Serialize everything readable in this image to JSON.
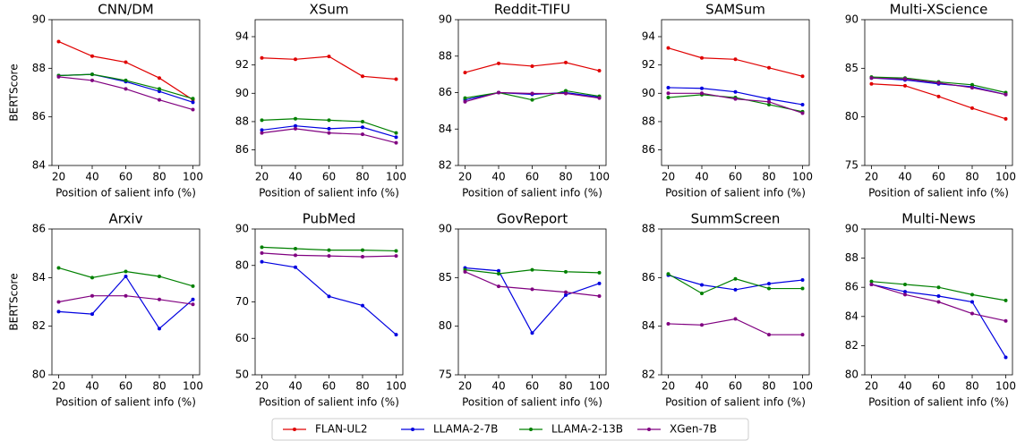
{
  "chart_data": [
    {
      "type": "line",
      "title": "CNN/DM",
      "xlabel": "Position of salient info (%)",
      "ylabel": "BERTScore",
      "x": [
        20,
        40,
        60,
        80,
        100
      ],
      "xlim": [
        16,
        104
      ],
      "xticks": [
        20,
        40,
        60,
        80,
        100
      ],
      "ylim": [
        84,
        90
      ],
      "yticks": [
        84,
        86,
        88,
        90
      ],
      "legend": "lower center",
      "series": [
        {
          "name": "FLAN-UL2",
          "color": "#e00000",
          "values": [
            89.1,
            88.5,
            88.25,
            87.6,
            86.7
          ]
        },
        {
          "name": "LLAMA-2-7B",
          "color": "#0000e0",
          "values": [
            87.7,
            87.75,
            87.45,
            87.05,
            86.6
          ]
        },
        {
          "name": "LLAMA-2-13B",
          "color": "#008000",
          "values": [
            87.7,
            87.75,
            87.5,
            87.15,
            86.75
          ]
        },
        {
          "name": "XGen-7B",
          "color": "#800080",
          "values": [
            87.65,
            87.5,
            87.15,
            86.7,
            86.3
          ]
        }
      ]
    },
    {
      "type": "line",
      "title": "XSum",
      "xlabel": "Position of salient info (%)",
      "x": [
        20,
        40,
        60,
        80,
        100
      ],
      "xlim": [
        16,
        104
      ],
      "xticks": [
        20,
        40,
        60,
        80,
        100
      ],
      "ylim": [
        84.9,
        95.2
      ],
      "yticks": [
        86,
        88,
        90,
        92,
        94
      ],
      "series": [
        {
          "name": "FLAN-UL2",
          "color": "#e00000",
          "values": [
            92.5,
            92.4,
            92.6,
            91.2,
            91.0
          ]
        },
        {
          "name": "LLAMA-2-7B",
          "color": "#0000e0",
          "values": [
            87.4,
            87.7,
            87.5,
            87.6,
            86.9
          ]
        },
        {
          "name": "LLAMA-2-13B",
          "color": "#008000",
          "values": [
            88.1,
            88.2,
            88.1,
            88.0,
            87.2
          ]
        },
        {
          "name": "XGen-7B",
          "color": "#800080",
          "values": [
            87.2,
            87.5,
            87.2,
            87.1,
            86.5
          ]
        }
      ]
    },
    {
      "type": "line",
      "title": "Reddit-TIFU",
      "xlabel": "Position of salient info (%)",
      "x": [
        20,
        40,
        60,
        80,
        100
      ],
      "xlim": [
        16,
        104
      ],
      "xticks": [
        20,
        40,
        60,
        80,
        100
      ],
      "ylim": [
        82,
        90
      ],
      "yticks": [
        82,
        84,
        86,
        88,
        90
      ],
      "series": [
        {
          "name": "FLAN-UL2",
          "color": "#e00000",
          "values": [
            87.1,
            87.6,
            87.45,
            87.65,
            87.2
          ]
        },
        {
          "name": "LLAMA-2-7B",
          "color": "#0000e0",
          "values": [
            85.6,
            86.0,
            85.9,
            86.0,
            85.75
          ]
        },
        {
          "name": "LLAMA-2-13B",
          "color": "#008000",
          "values": [
            85.7,
            86.0,
            85.6,
            86.1,
            85.8
          ]
        },
        {
          "name": "XGen-7B",
          "color": "#800080",
          "values": [
            85.5,
            86.0,
            85.95,
            85.95,
            85.7
          ]
        }
      ]
    },
    {
      "type": "line",
      "title": "SAMSum",
      "xlabel": "Position of salient info (%)",
      "x": [
        20,
        40,
        60,
        80,
        100
      ],
      "xlim": [
        16,
        104
      ],
      "xticks": [
        20,
        40,
        60,
        80,
        100
      ],
      "ylim": [
        84.9,
        95.2
      ],
      "yticks": [
        86,
        88,
        90,
        92,
        94
      ],
      "series": [
        {
          "name": "FLAN-UL2",
          "color": "#e00000",
          "values": [
            93.2,
            92.5,
            92.4,
            91.8,
            91.2
          ]
        },
        {
          "name": "LLAMA-2-7B",
          "color": "#0000e0",
          "values": [
            90.4,
            90.35,
            90.1,
            89.6,
            89.2
          ]
        },
        {
          "name": "LLAMA-2-13B",
          "color": "#008000",
          "values": [
            89.7,
            89.9,
            89.7,
            89.2,
            88.7
          ]
        },
        {
          "name": "XGen-7B",
          "color": "#800080",
          "values": [
            90.0,
            90.0,
            89.6,
            89.4,
            88.6
          ]
        }
      ]
    },
    {
      "type": "line",
      "title": "Multi-XScience",
      "xlabel": "Position of salient info (%)",
      "x": [
        20,
        40,
        60,
        80,
        100
      ],
      "xlim": [
        16,
        104
      ],
      "xticks": [
        20,
        40,
        60,
        80,
        100
      ],
      "ylim": [
        75,
        90
      ],
      "yticks": [
        75,
        80,
        85,
        90
      ],
      "series": [
        {
          "name": "FLAN-UL2",
          "color": "#e00000",
          "values": [
            83.4,
            83.2,
            82.1,
            80.9,
            79.8
          ]
        },
        {
          "name": "LLAMA-2-7B",
          "color": "#0000e0",
          "values": [
            84.0,
            83.8,
            83.4,
            83.1,
            82.3
          ]
        },
        {
          "name": "LLAMA-2-13B",
          "color": "#008000",
          "values": [
            84.1,
            84.0,
            83.6,
            83.3,
            82.5
          ]
        },
        {
          "name": "XGen-7B",
          "color": "#800080",
          "values": [
            84.0,
            83.9,
            83.5,
            83.0,
            82.3
          ]
        }
      ]
    },
    {
      "type": "line",
      "title": "Arxiv",
      "xlabel": "Position of salient info (%)",
      "ylabel": "BERTScore",
      "x": [
        20,
        40,
        60,
        80,
        100
      ],
      "xlim": [
        16,
        104
      ],
      "xticks": [
        20,
        40,
        60,
        80,
        100
      ],
      "ylim": [
        80,
        86
      ],
      "yticks": [
        80,
        82,
        84,
        86
      ],
      "series": [
        {
          "name": "LLAMA-2-7B",
          "color": "#0000e0",
          "values": [
            82.6,
            82.5,
            84.05,
            81.9,
            83.1
          ]
        },
        {
          "name": "LLAMA-2-13B",
          "color": "#008000",
          "values": [
            84.4,
            84.0,
            84.25,
            84.05,
            83.65
          ]
        },
        {
          "name": "XGen-7B",
          "color": "#800080",
          "values": [
            83.0,
            83.25,
            83.25,
            83.1,
            82.9
          ]
        }
      ]
    },
    {
      "type": "line",
      "title": "PubMed",
      "xlabel": "Position of salient info (%)",
      "x": [
        20,
        40,
        60,
        80,
        100
      ],
      "xlim": [
        16,
        104
      ],
      "xticks": [
        20,
        40,
        60,
        80,
        100
      ],
      "ylim": [
        50,
        90
      ],
      "yticks": [
        50,
        60,
        70,
        80,
        90
      ],
      "series": [
        {
          "name": "LLAMA-2-7B",
          "color": "#0000e0",
          "values": [
            81,
            79.5,
            71.5,
            69,
            61
          ]
        },
        {
          "name": "LLAMA-2-13B",
          "color": "#008000",
          "values": [
            85,
            84.6,
            84.2,
            84.2,
            84
          ]
        },
        {
          "name": "XGen-7B",
          "color": "#800080",
          "values": [
            83.4,
            82.8,
            82.6,
            82.4,
            82.6
          ]
        }
      ]
    },
    {
      "type": "line",
      "title": "GovReport",
      "xlabel": "Position of salient info (%)",
      "x": [
        20,
        40,
        60,
        80,
        100
      ],
      "xlim": [
        16,
        104
      ],
      "xticks": [
        20,
        40,
        60,
        80,
        100
      ],
      "ylim": [
        75,
        90
      ],
      "yticks": [
        75,
        80,
        85,
        90
      ],
      "series": [
        {
          "name": "LLAMA-2-7B",
          "color": "#0000e0",
          "values": [
            86.0,
            85.7,
            79.3,
            83.2,
            84.4
          ]
        },
        {
          "name": "LLAMA-2-13B",
          "color": "#008000",
          "values": [
            85.8,
            85.4,
            85.8,
            85.6,
            85.5
          ]
        },
        {
          "name": "XGen-7B",
          "color": "#800080",
          "values": [
            85.6,
            84.1,
            83.8,
            83.5,
            83.1
          ]
        }
      ]
    },
    {
      "type": "line",
      "title": "SummScreen",
      "xlabel": "Position of salient info (%)",
      "x": [
        20,
        40,
        60,
        80,
        100
      ],
      "xlim": [
        16,
        104
      ],
      "xticks": [
        20,
        40,
        60,
        80,
        100
      ],
      "ylim": [
        82,
        88
      ],
      "yticks": [
        82,
        84,
        86,
        88
      ],
      "series": [
        {
          "name": "LLAMA-2-7B",
          "color": "#0000e0",
          "values": [
            86.1,
            85.7,
            85.5,
            85.75,
            85.9
          ]
        },
        {
          "name": "LLAMA-2-13B",
          "color": "#008000",
          "values": [
            86.15,
            85.35,
            85.95,
            85.55,
            85.55
          ]
        },
        {
          "name": "XGen-7B",
          "color": "#800080",
          "values": [
            84.1,
            84.05,
            84.3,
            83.65,
            83.65
          ]
        }
      ]
    },
    {
      "type": "line",
      "title": "Multi-News",
      "xlabel": "Position of salient info (%)",
      "x": [
        20,
        40,
        60,
        80,
        100
      ],
      "xlim": [
        16,
        104
      ],
      "xticks": [
        20,
        40,
        60,
        80,
        100
      ],
      "ylim": [
        80,
        90
      ],
      "yticks": [
        80,
        82,
        84,
        86,
        88,
        90
      ],
      "series": [
        {
          "name": "LLAMA-2-7B",
          "color": "#0000e0",
          "values": [
            86.2,
            85.7,
            85.4,
            85.0,
            81.2
          ]
        },
        {
          "name": "LLAMA-2-13B",
          "color": "#008000",
          "values": [
            86.4,
            86.2,
            86.0,
            85.5,
            85.1
          ]
        },
        {
          "name": "XGen-7B",
          "color": "#800080",
          "values": [
            86.2,
            85.5,
            85.0,
            84.2,
            83.7
          ]
        }
      ]
    }
  ]
}
